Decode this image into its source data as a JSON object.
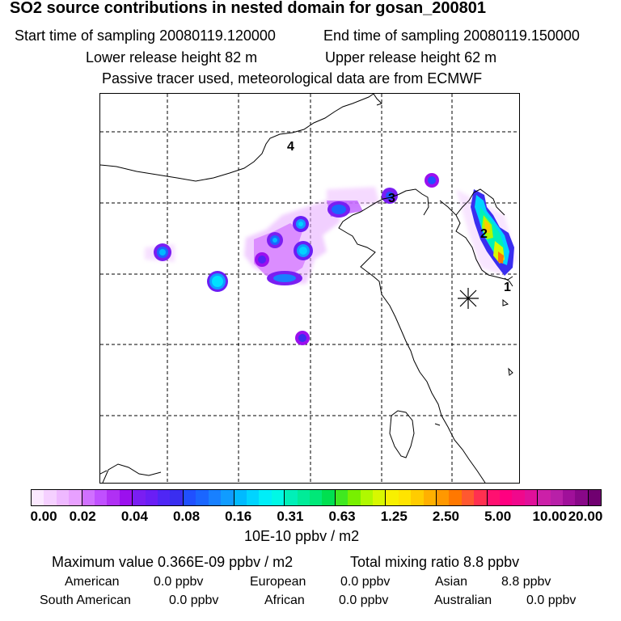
{
  "header": {
    "title": "SO2 source contributions in nested domain for gosan_200801",
    "start_time": "Start time of sampling 20080119.120000",
    "end_time": "End time of sampling 20080119.150000",
    "lower_height": "Lower release height   82 m",
    "upper_height": "Upper release height   62 m",
    "tracer_info": "Passive tracer used, meteorological data are from ECMWF"
  },
  "map": {
    "labels": [
      "4",
      "3",
      "2",
      "1"
    ],
    "receptor_marker": "asterisk-icon"
  },
  "colorbar": {
    "ticks": [
      "0.00",
      "0.02",
      "0.04",
      "0.08",
      "0.16",
      "0.31",
      "0.63",
      "1.25",
      "2.50",
      "5.00",
      "10.00",
      "20.00"
    ],
    "unit": "10E-10 ppbv / m2",
    "colors": [
      "#fbe8ff",
      "#f5d0ff",
      "#eeb8ff",
      "#e8a0ff",
      "#d070ff",
      "#c050ff",
      "#b030f4",
      "#9b10ee",
      "#7a1ef2",
      "#6a1ef5",
      "#4f26f5",
      "#3a2ef0",
      "#2050ff",
      "#1a66ff",
      "#1880ff",
      "#109cff",
      "#00baff",
      "#00d4ff",
      "#00eef8",
      "#00f8e6",
      "#00f0b8",
      "#00ec98",
      "#00e878",
      "#00e050",
      "#40e820",
      "#78f000",
      "#b0f800",
      "#d8f800",
      "#f8f000",
      "#ffe400",
      "#ffcc00",
      "#ffb000",
      "#ff9800",
      "#ff7800",
      "#ff5830",
      "#ff3050",
      "#ff1070",
      "#ff0080",
      "#f0088c",
      "#e0109a",
      "#cc20a8",
      "#b820a8",
      "#a0109a",
      "#880888",
      "#700070"
    ]
  },
  "stats": {
    "max_value": "Maximum value  0.366E-09 ppbv / m2",
    "total_mixing": "Total mixing ratio       8.8 ppbv",
    "regions": [
      {
        "name": "American",
        "value": "0.0 ppbv"
      },
      {
        "name": "European",
        "value": "0.0 ppbv"
      },
      {
        "name": "Asian",
        "value": "8.8 ppbv"
      },
      {
        "name": "South American",
        "value": "0.0 ppbv"
      },
      {
        "name": "African",
        "value": "0.0 ppbv"
      },
      {
        "name": "Australian",
        "value": "0.0 ppbv"
      }
    ]
  }
}
